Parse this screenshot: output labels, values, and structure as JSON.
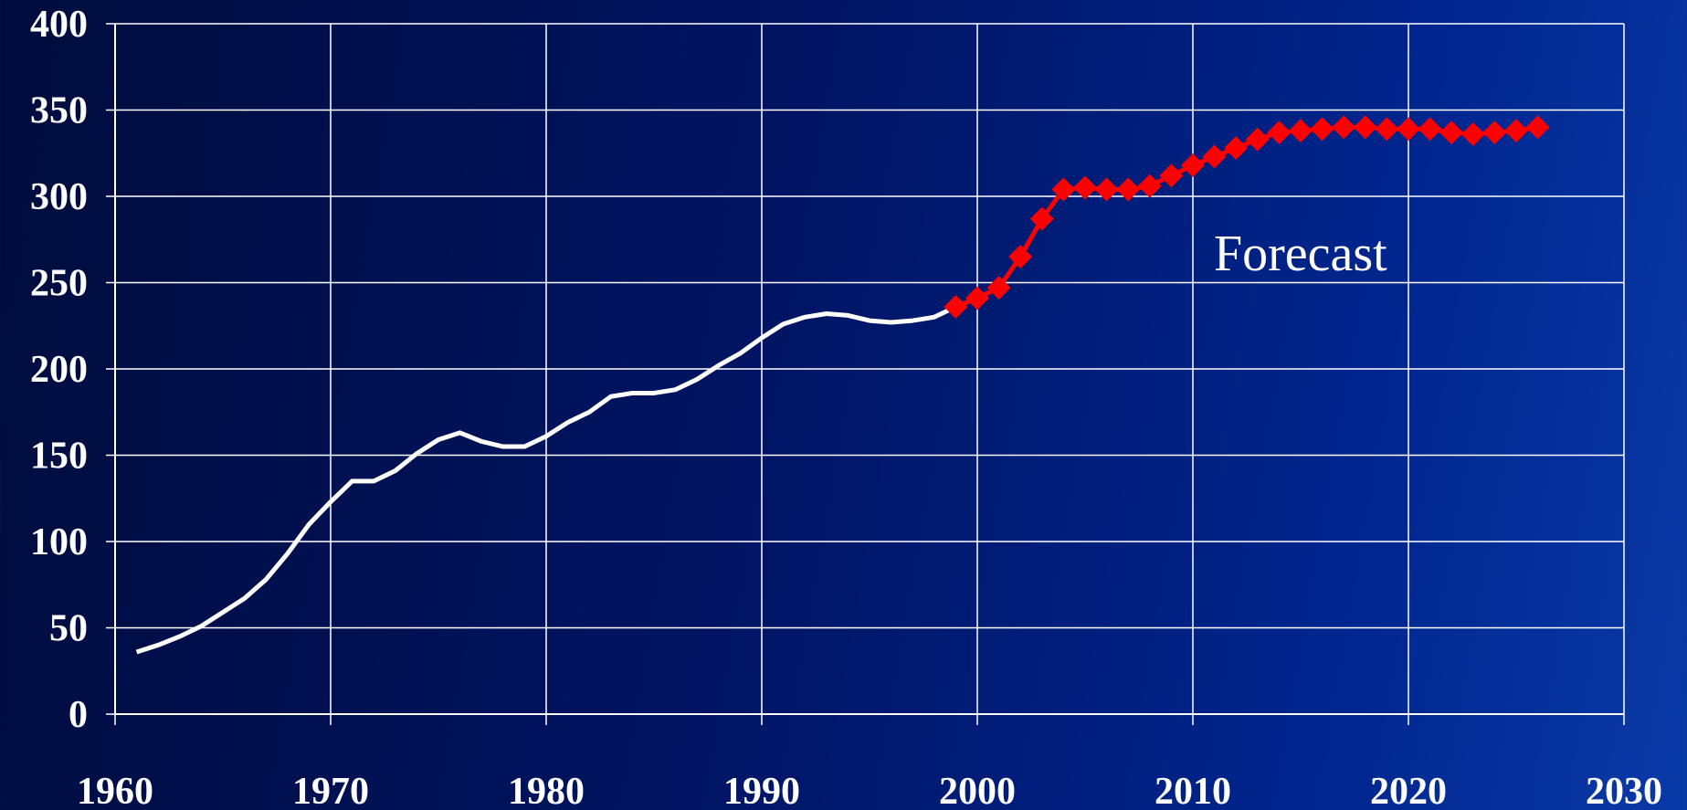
{
  "chart_data": {
    "type": "line",
    "annotations": [
      "Forecast"
    ],
    "x": [
      1961,
      1962,
      1963,
      1964,
      1965,
      1966,
      1967,
      1968,
      1969,
      1970,
      1971,
      1972,
      1973,
      1974,
      1975,
      1976,
      1977,
      1978,
      1979,
      1980,
      1981,
      1982,
      1983,
      1984,
      1985,
      1986,
      1987,
      1988,
      1989,
      1990,
      1991,
      1992,
      1993,
      1994,
      1995,
      1996,
      1997,
      1998,
      1999,
      2000,
      2001,
      2002,
      2003,
      2004,
      2005,
      2006,
      2007,
      2008,
      2009,
      2010,
      2011,
      2012,
      2013,
      2014,
      2015,
      2016,
      2017,
      2018,
      2019,
      2020,
      2021,
      2022,
      2023,
      2024,
      2025,
      2026
    ],
    "series": [
      {
        "color": "#ffffff",
        "marker": "none",
        "values": [
          36,
          40,
          45,
          51,
          59,
          67,
          78,
          93,
          110,
          123,
          135,
          135,
          141,
          151,
          159,
          163,
          158,
          155,
          155,
          161,
          169,
          175,
          184,
          186,
          186,
          188,
          194,
          202,
          209,
          218,
          226,
          230,
          232,
          231,
          228,
          227,
          228,
          230,
          236,
          null,
          null,
          null,
          null,
          null,
          null,
          null,
          null,
          null,
          null,
          null,
          null,
          null,
          null,
          null,
          null,
          null,
          null,
          null,
          null,
          null,
          null,
          null,
          null,
          null,
          null,
          null
        ]
      },
      {
        "color": "#ff0000",
        "marker": "diamond",
        "values": [
          null,
          null,
          null,
          null,
          null,
          null,
          null,
          null,
          null,
          null,
          null,
          null,
          null,
          null,
          null,
          null,
          null,
          null,
          null,
          null,
          null,
          null,
          null,
          null,
          null,
          null,
          null,
          null,
          null,
          null,
          null,
          null,
          null,
          null,
          null,
          null,
          null,
          null,
          236,
          241,
          247,
          265,
          287,
          304,
          305,
          304,
          304,
          306,
          312,
          318,
          323,
          328,
          333,
          337,
          338,
          339,
          340,
          340,
          339,
          339,
          339,
          337,
          336,
          337,
          338,
          340
        ]
      }
    ],
    "xlim": [
      1960,
      2030
    ],
    "xticks": [
      1960,
      1970,
      1980,
      1990,
      2000,
      2010,
      2020,
      2030
    ],
    "ylim": [
      0,
      400
    ],
    "yticks": [
      0,
      50,
      100,
      150,
      200,
      250,
      300,
      350,
      400
    ],
    "grid": true
  }
}
